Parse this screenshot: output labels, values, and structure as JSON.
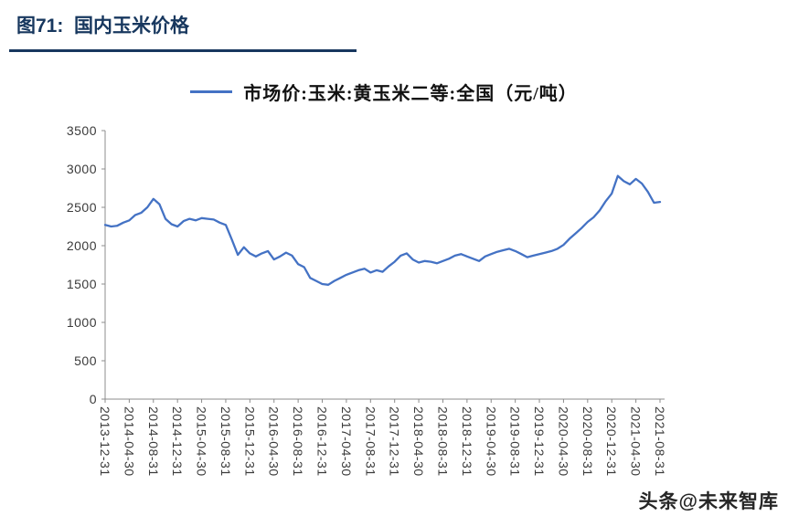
{
  "figure": {
    "title": "图71:  国内玉米价格",
    "watermark": "头条@未来智库"
  },
  "chart_data": {
    "type": "line",
    "title": "国内玉米价格",
    "legend": "市场价:玉米:黄玉米二等:全国（元/吨）",
    "legend_position": "top",
    "line_color": "#4472C4",
    "grid": false,
    "xlabel": "",
    "ylabel": "元/吨",
    "ylim": [
      0,
      3500
    ],
    "yticks": [
      0,
      500,
      1000,
      1500,
      2000,
      2500,
      3000,
      3500
    ],
    "x_frequency": "monthly",
    "x_start": "2013-12-31",
    "x_end": "2021-08-31",
    "x_tick_every": 4,
    "x_tick_labels": [
      "2013-12-31",
      "2014-04-30",
      "2014-08-31",
      "2014-12-31",
      "2015-04-30",
      "2015-08-31",
      "2015-12-31",
      "2016-04-30",
      "2016-08-31",
      "2016-12-31",
      "2017-04-30",
      "2017-08-31",
      "2017-12-31",
      "2018-04-30",
      "2018-08-31",
      "2018-12-31",
      "2019-04-30",
      "2019-08-31",
      "2019-12-31",
      "2020-04-30",
      "2020-08-31",
      "2020-12-31",
      "2021-04-30",
      "2021-08-31"
    ],
    "series": [
      {
        "name": "市场价:玉米:黄玉米二等:全国（元/吨）",
        "unit": "元/吨",
        "values": [
          2270,
          2250,
          2260,
          2300,
          2330,
          2400,
          2430,
          2500,
          2610,
          2540,
          2350,
          2280,
          2250,
          2320,
          2350,
          2330,
          2360,
          2350,
          2340,
          2300,
          2270,
          2080,
          1880,
          1980,
          1900,
          1860,
          1900,
          1930,
          1820,
          1860,
          1910,
          1870,
          1760,
          1720,
          1580,
          1540,
          1500,
          1490,
          1540,
          1580,
          1620,
          1650,
          1680,
          1700,
          1650,
          1680,
          1660,
          1730,
          1790,
          1870,
          1900,
          1820,
          1780,
          1800,
          1790,
          1770,
          1800,
          1830,
          1870,
          1890,
          1860,
          1830,
          1800,
          1860,
          1890,
          1920,
          1940,
          1960,
          1930,
          1890,
          1850,
          1870,
          1890,
          1910,
          1930,
          1960,
          2010,
          2090,
          2160,
          2230,
          2310,
          2370,
          2460,
          2580,
          2680,
          2910,
          2840,
          2800,
          2870,
          2810,
          2700,
          2560,
          2570
        ]
      }
    ]
  }
}
